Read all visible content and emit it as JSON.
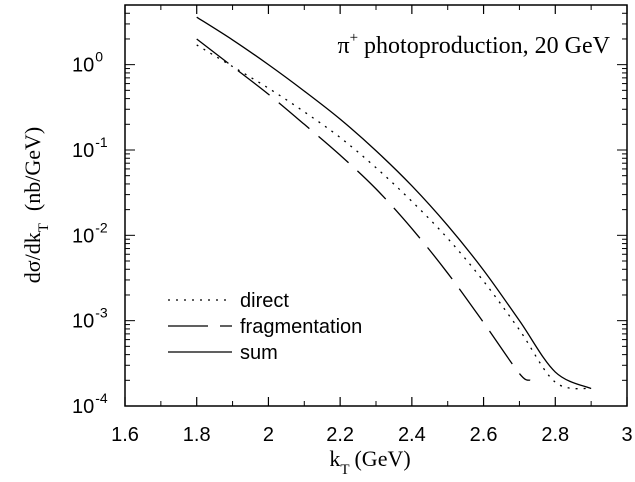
{
  "chart_data": {
    "type": "line",
    "title": "",
    "annotation": {
      "particle": "π",
      "charge": "+",
      "text": "photoproduction, 20 GeV"
    },
    "xlabel": {
      "main": "k",
      "sub": "T",
      "unit": "(GeV)"
    },
    "ylabel": {
      "main": "dσ/dk",
      "sub": "T",
      "unit": "(nb/GeV)"
    },
    "xlim": [
      1.6,
      3.0
    ],
    "ylim": [
      0.0001,
      5
    ],
    "yscale": "log",
    "grid": false,
    "legend_position": "bottom-left",
    "x_ticks": [
      "1.6",
      "1.8",
      "2",
      "2.2",
      "2.4",
      "2.6",
      "2.8",
      "3"
    ],
    "x_tick_values": [
      1.6,
      1.8,
      2.0,
      2.2,
      2.4,
      2.6,
      2.8,
      3.0
    ],
    "y_ticks": [
      {
        "base": "10",
        "exp": "0",
        "value": 1
      },
      {
        "base": "10",
        "exp": "-1",
        "value": 0.1
      },
      {
        "base": "10",
        "exp": "-2",
        "value": 0.01
      },
      {
        "base": "10",
        "exp": "-3",
        "value": 0.001
      },
      {
        "base": "10",
        "exp": "-4",
        "value": 0.0001
      }
    ],
    "series": [
      {
        "name": "direct",
        "style": "dotted",
        "x": [
          1.8,
          1.9,
          2.0,
          2.1,
          2.2,
          2.3,
          2.4,
          2.5,
          2.6,
          2.7,
          2.8,
          2.9
        ],
        "y": [
          1.7,
          0.95,
          0.53,
          0.28,
          0.14,
          0.062,
          0.025,
          0.0092,
          0.0029,
          0.00078,
          0.00019,
          0.00016
        ]
      },
      {
        "name": "fragmentation",
        "style": "dashed",
        "x": [
          1.8,
          1.9,
          2.0,
          2.1,
          2.2,
          2.3,
          2.4,
          2.5,
          2.6,
          2.7,
          2.73
        ],
        "y": [
          2.0,
          0.95,
          0.45,
          0.2,
          0.087,
          0.035,
          0.012,
          0.0036,
          0.00095,
          0.00024,
          0.0002
        ]
      },
      {
        "name": "sum",
        "style": "solid",
        "x": [
          1.8,
          1.9,
          2.0,
          2.1,
          2.2,
          2.3,
          2.4,
          2.5,
          2.6,
          2.7,
          2.8,
          2.9
        ],
        "y": [
          3.6,
          1.95,
          1.0,
          0.49,
          0.23,
          0.098,
          0.038,
          0.013,
          0.0039,
          0.001,
          0.00025,
          0.00016
        ]
      }
    ]
  }
}
